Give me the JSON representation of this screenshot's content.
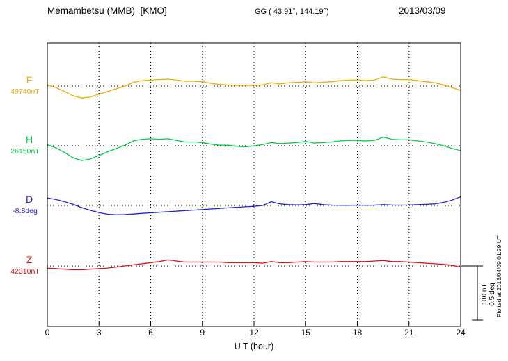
{
  "header": {
    "title": "Memambetsu (MMB)  [KMO]",
    "coords": "GG ( 43.91°, 144.19°)",
    "date": "2013/03/09"
  },
  "scalebar": {
    "label_nt": "100 nT",
    "label_deg": "0.5 deg"
  },
  "plotted_at": "Plotted at 2013/04/09 01:29 UT",
  "chart_data": {
    "type": "line",
    "title": "Memambetsu (MMB) [KMO] magnetogram for 2013/03/09",
    "xlabel": "U T (hour)",
    "x_range": [
      0,
      24
    ],
    "x_ticks": [
      0,
      3,
      6,
      9,
      12,
      15,
      18,
      21,
      24
    ],
    "grid": "dotted vertical lines at 3-hour ticks; dotted horizontal baseline per component",
    "legend_position": "left-of-axis component labels",
    "scale_bar": {
      "nT_per_bar": 100,
      "deg_per_bar": 0.5
    },
    "x": [
      0,
      0.5,
      1,
      1.5,
      2,
      2.5,
      3,
      3.5,
      4,
      4.5,
      5,
      5.5,
      6,
      6.5,
      7,
      7.5,
      8,
      8.5,
      9,
      9.5,
      10,
      10.5,
      11,
      11.5,
      12,
      12.5,
      13,
      13.5,
      14,
      14.5,
      15,
      15.5,
      16,
      16.5,
      17,
      17.5,
      18,
      18.5,
      19,
      19.5,
      20,
      20.5,
      21,
      21.5,
      22,
      22.5,
      23,
      23.5,
      24
    ],
    "series": [
      {
        "name": "F",
        "label": "F",
        "baseline_label": "49740nT",
        "baseline_value": 49740,
        "unit": "nT",
        "color": "#f5a800",
        "offsets": [
          2,
          -3,
          -10,
          -18,
          -22,
          -20,
          -15,
          -10,
          -5,
          0,
          7,
          10,
          11,
          12,
          13,
          11,
          9,
          9,
          8,
          5,
          3,
          2,
          1,
          1,
          1,
          2,
          6,
          4,
          6,
          7,
          8,
          6,
          7,
          8,
          10,
          11,
          11,
          10,
          11,
          17,
          13,
          12,
          12,
          10,
          8,
          6,
          2,
          -3,
          -8
        ]
      },
      {
        "name": "H",
        "label": "H",
        "baseline_label": "26150nT",
        "baseline_value": 26150,
        "unit": "nT",
        "color": "#00cc44",
        "offsets": [
          2,
          -4,
          -12,
          -22,
          -27,
          -24,
          -18,
          -11,
          -5,
          1,
          9,
          12,
          13,
          12,
          13,
          10,
          7,
          7,
          6,
          3,
          1,
          1,
          -1,
          -2,
          0,
          2,
          6,
          4,
          5,
          6,
          8,
          5,
          6,
          7,
          9,
          10,
          10,
          9,
          10,
          16,
          12,
          11,
          11,
          9,
          7,
          4,
          0,
          -5,
          -9
        ]
      },
      {
        "name": "D",
        "label": "D",
        "baseline_label": "-8.8deg",
        "baseline_value": -8.8,
        "unit": "deg",
        "color": "#2222cc",
        "offsets": [
          0.07,
          0.055,
          0.035,
          0.01,
          -0.02,
          -0.045,
          -0.065,
          -0.08,
          -0.085,
          -0.083,
          -0.078,
          -0.072,
          -0.067,
          -0.062,
          -0.057,
          -0.052,
          -0.047,
          -0.042,
          -0.037,
          -0.032,
          -0.027,
          -0.022,
          -0.017,
          -0.012,
          -0.008,
          0.0,
          0.035,
          0.015,
          0.008,
          0.006,
          0.008,
          0.018,
          0.008,
          0.003,
          0.002,
          0.002,
          0.003,
          0.002,
          0.003,
          0.008,
          0.004,
          0.003,
          0.004,
          0.008,
          0.01,
          0.015,
          0.028,
          0.05,
          0.08
        ]
      },
      {
        "name": "Z",
        "label": "Z",
        "baseline_label": "42310nT",
        "baseline_value": 42310,
        "unit": "nT",
        "color": "#dd1111",
        "offsets": [
          -4,
          -5,
          -6,
          -7,
          -7,
          -6,
          -5,
          -4,
          -2,
          0,
          2,
          4,
          6,
          8,
          11,
          9,
          7,
          7,
          7,
          7,
          7,
          6,
          6,
          6,
          6,
          5,
          8,
          6,
          6,
          7,
          8,
          7,
          7,
          7,
          8,
          8,
          8,
          8,
          9,
          10,
          8,
          8,
          7,
          6,
          5,
          4,
          3,
          1,
          -2
        ]
      }
    ]
  }
}
